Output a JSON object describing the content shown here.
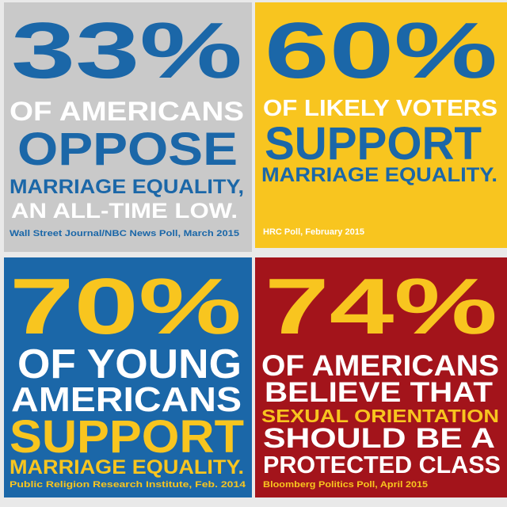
{
  "panels": [
    {
      "stat": "33%",
      "lines": [
        "OF AMERICANS",
        "OPPOSE",
        "MARRIAGE EQUALITY,",
        "AN ALL-TIME LOW."
      ],
      "source": "Wall Street Journal/NBC News Poll, March 2015"
    },
    {
      "stat": "60%",
      "lines": [
        "OF LIKELY VOTERS",
        "SUPPORT",
        "MARRIAGE EQUALITY."
      ],
      "source": "HRC Poll, February 2015"
    },
    {
      "stat": "70%",
      "lines": [
        "OF YOUNG",
        "AMERICANS",
        "SUPPORT",
        "MARRIAGE EQUALITY."
      ],
      "source": "Public Religion Research Institute, Feb. 2014"
    },
    {
      "stat": "74%",
      "lines": [
        "OF AMERICANS",
        "BELIEVE THAT",
        "SEXUAL ORIENTATION",
        "SHOULD BE A",
        "PROTECTED CLASS"
      ],
      "source": "Bloomberg Politics Poll, April 2015"
    }
  ]
}
